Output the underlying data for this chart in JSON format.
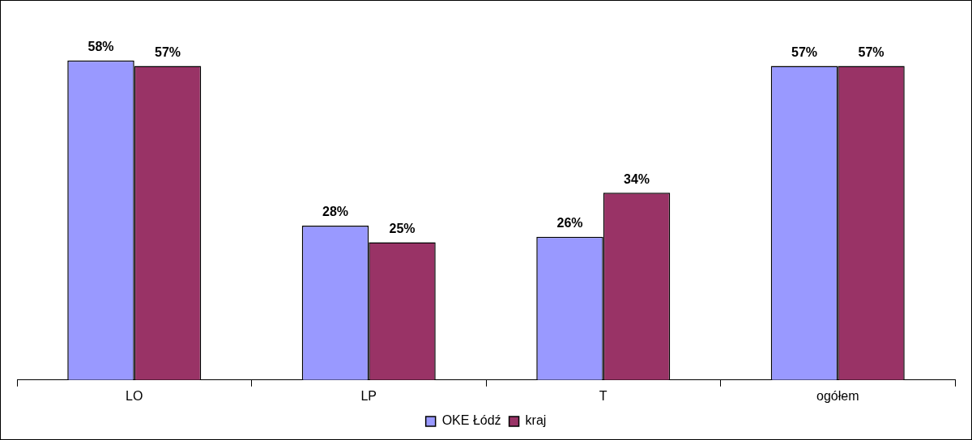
{
  "chart_data": {
    "type": "bar",
    "categories": [
      "LO",
      "LP",
      "T",
      "ogółem"
    ],
    "series": [
      {
        "name": "OKE Łódź",
        "color": "#9999ff",
        "values": [
          58,
          28,
          26,
          57
        ],
        "value_labels": [
          "58%",
          "28%",
          "26%",
          "57%"
        ]
      },
      {
        "name": "kraj",
        "color": "#993366",
        "values": [
          57,
          25,
          34,
          57
        ],
        "value_labels": [
          "57%",
          "25%",
          "34%",
          "57%"
        ]
      }
    ],
    "legend": "bottom"
  }
}
